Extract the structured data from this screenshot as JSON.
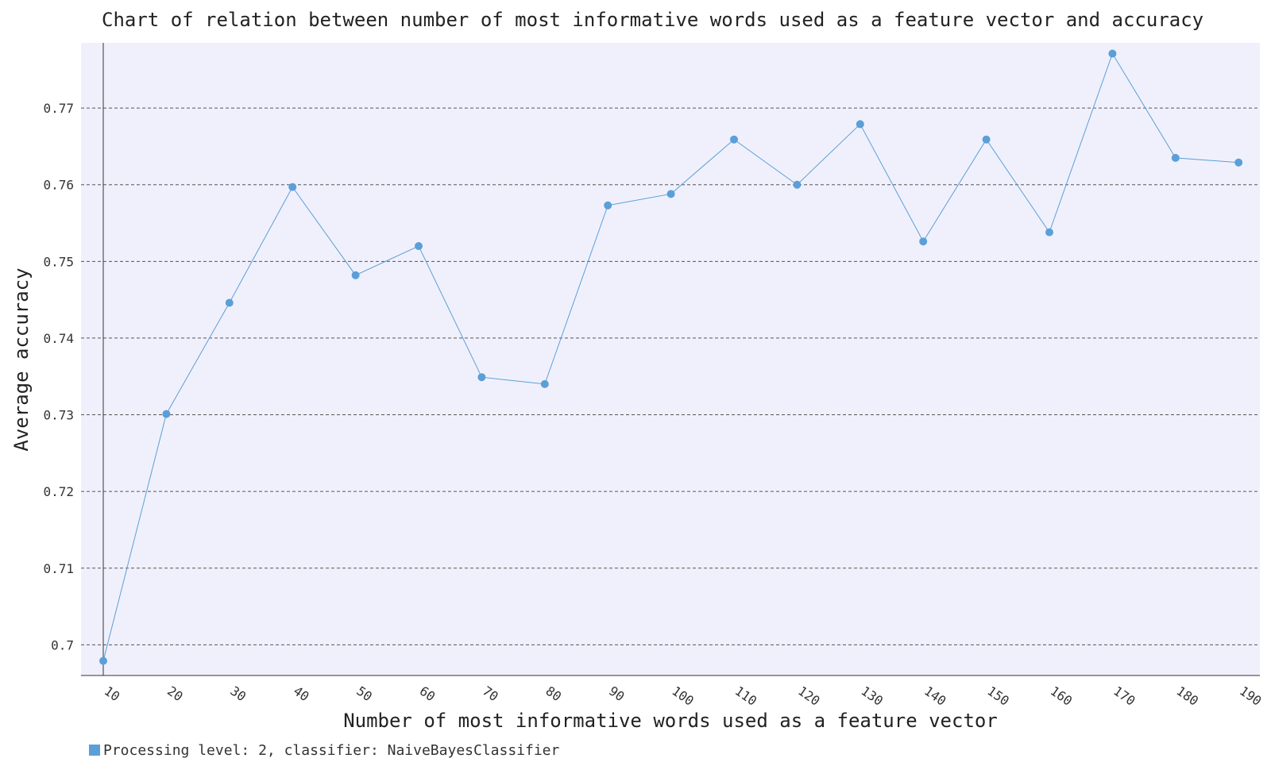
{
  "chart_data": {
    "type": "line",
    "title": "Chart of relation between number of most informative words used as a feature vector and accuracy",
    "xlabel": "Number of most informative words used as a feature vector",
    "ylabel": "Average accuracy",
    "categories": [
      "10",
      "20",
      "30",
      "40",
      "50",
      "60",
      "70",
      "80",
      "90",
      "100",
      "110",
      "120",
      "130",
      "140",
      "150",
      "160",
      "170",
      "180",
      "190"
    ],
    "series": [
      {
        "name": "Processing level: 2, classifier: NaiveBayesClassifier",
        "values": [
          0.6979,
          0.7301,
          0.7446,
          0.7597,
          0.7482,
          0.752,
          0.7349,
          0.734,
          0.7573,
          0.7588,
          0.7659,
          0.76,
          0.7679,
          0.7526,
          0.7659,
          0.7538,
          0.7771,
          0.7635,
          0.7629
        ]
      }
    ],
    "y_ticks": [
      "0.7",
      "0.71",
      "0.72",
      "0.73",
      "0.74",
      "0.75",
      "0.76",
      "0.77"
    ],
    "ylim": [
      0.696,
      0.7785
    ],
    "grid": "horizontal dashed",
    "legend": "bottom-left",
    "colors": {
      "series": "#5b9fd8",
      "plot_background": "#f0f0fc",
      "grid": "#555555",
      "axis": "#333333"
    }
  }
}
